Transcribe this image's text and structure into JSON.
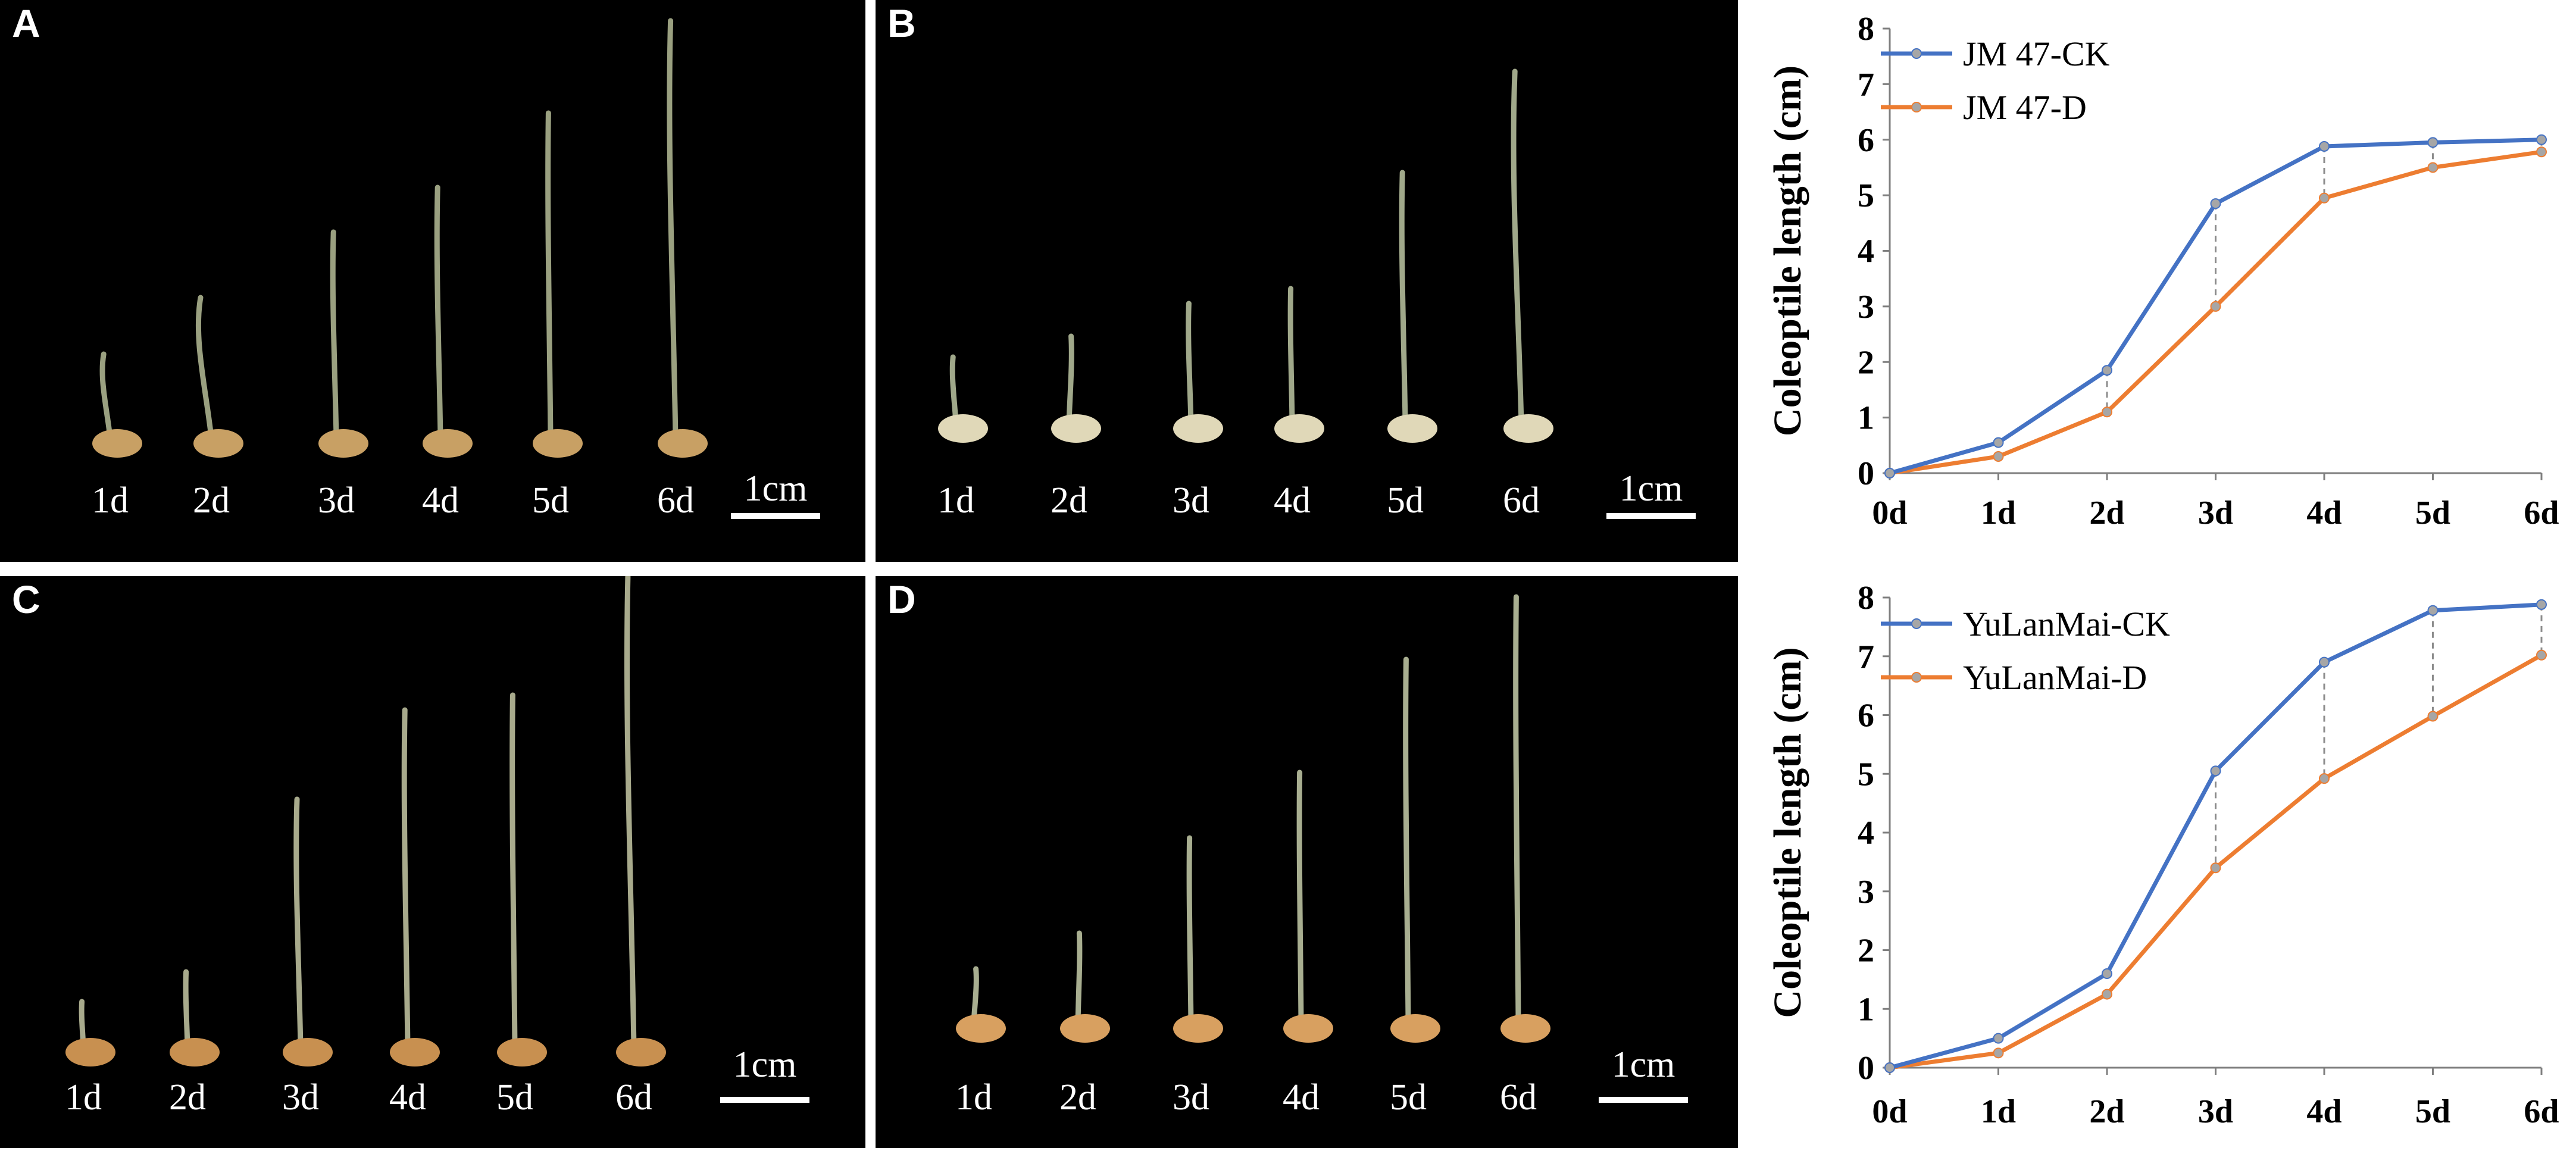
{
  "panels": [
    {
      "id": "A",
      "letter": "A",
      "days": [
        "1d",
        "2d",
        "3d",
        "4d",
        "5d",
        "6d"
      ],
      "scale": "1cm",
      "seedling_color": "#9aa080",
      "seed_color": "#c8a064"
    },
    {
      "id": "B",
      "letter": "B",
      "days": [
        "1d",
        "2d",
        "3d",
        "4d",
        "5d",
        "6d"
      ],
      "scale": "1cm",
      "seedling_color": "#a0a88a",
      "seed_color": "#e0d8b8"
    },
    {
      "id": "C",
      "letter": "C",
      "days": [
        "1d",
        "2d",
        "3d",
        "4d",
        "5d",
        "6d"
      ],
      "scale": "1cm",
      "seedling_color": "#a8aa8c",
      "seed_color": "#c89050"
    },
    {
      "id": "D",
      "letter": "D",
      "days": [
        "1d",
        "2d",
        "3d",
        "4d",
        "5d",
        "6d"
      ],
      "scale": "1cm",
      "seedling_color": "#a8ae90",
      "seed_color": "#d8a060"
    }
  ],
  "chart_data": [
    {
      "type": "line",
      "title": "",
      "xlabel": "",
      "ylabel": "Coleoptile  length  (cm)",
      "categories": [
        "0d",
        "1d",
        "2d",
        "3d",
        "4d",
        "5d",
        "6d"
      ],
      "ylim": [
        0,
        8
      ],
      "yticks": [
        "0",
        "1",
        "2",
        "3",
        "4",
        "5",
        "6",
        "7",
        "8"
      ],
      "grid": false,
      "legend": "top-left",
      "series": [
        {
          "name": "JM 47-CK",
          "color": "#4472c4",
          "values": [
            0,
            0.55,
            1.85,
            4.85,
            5.88,
            5.95,
            6.0
          ]
        },
        {
          "name": "JM 47-D",
          "color": "#ed7d31",
          "values": [
            0,
            0.3,
            1.1,
            3.0,
            4.95,
            5.5,
            5.78
          ]
        }
      ],
      "dashed_connectors_at": [
        "2d",
        "3d",
        "4d",
        "5d",
        "6d"
      ]
    },
    {
      "type": "line",
      "title": "",
      "xlabel": "",
      "ylabel": "Coleoptile  length  (cm)",
      "categories": [
        "0d",
        "1d",
        "2d",
        "3d",
        "4d",
        "5d",
        "6d"
      ],
      "ylim": [
        0,
        8
      ],
      "yticks": [
        "0",
        "1",
        "2",
        "3",
        "4",
        "5",
        "6",
        "7",
        "8"
      ],
      "grid": false,
      "legend": "top-left",
      "series": [
        {
          "name": "YuLanMai-CK",
          "color": "#4472c4",
          "values": [
            0,
            0.5,
            1.6,
            5.05,
            6.9,
            7.78,
            7.88
          ]
        },
        {
          "name": "YuLanMai-D",
          "color": "#ed7d31",
          "values": [
            0,
            0.25,
            1.25,
            3.4,
            4.92,
            5.98,
            7.02
          ]
        }
      ],
      "dashed_connectors_at": [
        "3d",
        "4d",
        "5d",
        "6d"
      ]
    }
  ]
}
